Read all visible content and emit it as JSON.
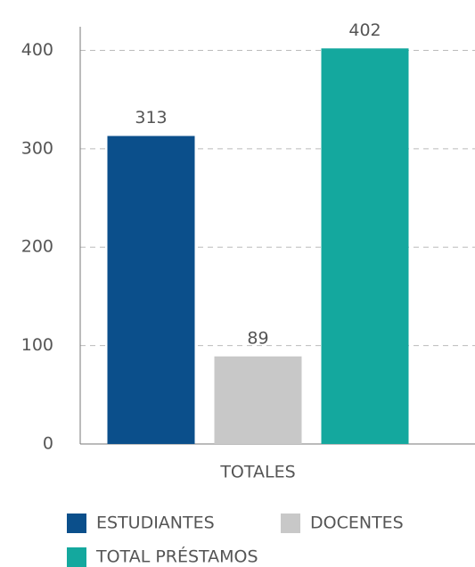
{
  "chart_data": {
    "type": "bar",
    "categories": [
      "TOTALES"
    ],
    "series": [
      {
        "name": "ESTUDIANTES",
        "color": "#0b4f8b",
        "values": [
          313
        ]
      },
      {
        "name": "DOCENTES",
        "color": "#c8c8c8",
        "values": [
          89
        ]
      },
      {
        "name": "TOTAL PRÉSTAMOS",
        "color": "#14a89e",
        "values": [
          402
        ]
      }
    ],
    "ylim": [
      0,
      424
    ],
    "yticks": [
      0,
      100,
      200,
      300,
      400
    ],
    "grid": true,
    "legend": "bottom"
  }
}
